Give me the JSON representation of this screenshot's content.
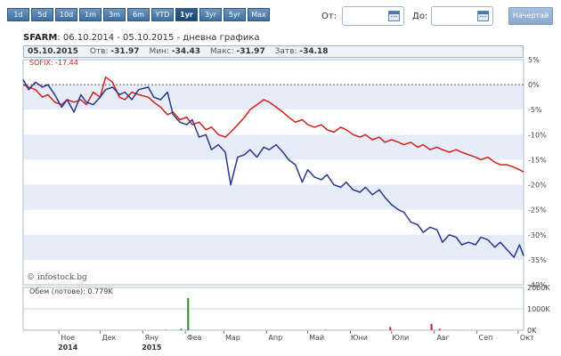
{
  "toolbar": {
    "ranges": [
      "1d",
      "5d",
      "10d",
      "1m",
      "3m",
      "6m",
      "YTD",
      "1yr",
      "3yr",
      "5yr",
      "Max"
    ],
    "active_range": "1yr",
    "from_label": "От:",
    "from_value": "",
    "to_label": "До:",
    "to_value": "",
    "draw_label": "Начертай"
  },
  "header": {
    "symbol": "SFARM",
    "period": ": 06.10.2014 - 05.10.2015 - дневна графика"
  },
  "stats": {
    "date": "05.10.2015",
    "open_label": "Отв:",
    "open": "-31.97",
    "min_label": "Мин:",
    "min": "-34.43",
    "max_label": "Макс:",
    "max": "-31.97",
    "close_label": "Затв:",
    "close": "-34.18"
  },
  "legend": {
    "sofix": "SOFIX: -17.44"
  },
  "credit": "© infostock.bg",
  "volume": {
    "label": "Обем (лотове): 0.779K"
  },
  "colors": {
    "sfarm": "#27378a",
    "sofix": "#d0201c",
    "volume_bar": "#2c8a2c",
    "volume_bar_red": "#c82020"
  },
  "chart_data": [
    {
      "type": "line",
      "title": "",
      "ylabel": "",
      "ylim": [
        -40,
        5
      ],
      "y_ticks": [
        "5%",
        "0%",
        "-5%",
        "-10%",
        "-15%",
        "-20%",
        "-25%",
        "-30%",
        "-35%",
        "-40%"
      ],
      "x_ticks": [
        "Ное",
        "Дек",
        "Яну",
        "Фев",
        "Мар",
        "Апр",
        "Май",
        "Юни",
        "Юли",
        "Авг",
        "Сеп",
        "Окт"
      ],
      "x_years": [
        "2014",
        "2015"
      ],
      "series": [
        {
          "name": "SFARM",
          "x": [
            "2014-10-06",
            "2014-10-10",
            "2014-10-15",
            "2014-10-20",
            "2014-10-24",
            "2014-10-29",
            "2014-11-03",
            "2014-11-07",
            "2014-11-12",
            "2014-11-17",
            "2014-11-21",
            "2014-11-26",
            "2014-12-01",
            "2014-12-05",
            "2014-12-10",
            "2014-12-15",
            "2014-12-19",
            "2014-12-24",
            "2014-12-29",
            "2015-01-05",
            "2015-01-09",
            "2015-01-14",
            "2015-01-19",
            "2015-01-23",
            "2015-01-28",
            "2015-02-02",
            "2015-02-06",
            "2015-02-11",
            "2015-02-16",
            "2015-02-20",
            "2015-02-25",
            "2015-03-02",
            "2015-03-06",
            "2015-03-11",
            "2015-03-16",
            "2015-03-20",
            "2015-03-25",
            "2015-03-30",
            "2015-04-03",
            "2015-04-08",
            "2015-04-13",
            "2015-04-17",
            "2015-04-22",
            "2015-04-27",
            "2015-05-01",
            "2015-05-06",
            "2015-05-11",
            "2015-05-15",
            "2015-05-20",
            "2015-05-25",
            "2015-05-29",
            "2015-06-03",
            "2015-06-08",
            "2015-06-12",
            "2015-06-17",
            "2015-06-22",
            "2015-06-26",
            "2015-07-01",
            "2015-07-06",
            "2015-07-10",
            "2015-07-15",
            "2015-07-20",
            "2015-07-24",
            "2015-07-29",
            "2015-08-03",
            "2015-08-07",
            "2015-08-12",
            "2015-08-17",
            "2015-08-21",
            "2015-08-26",
            "2015-08-31",
            "2015-09-04",
            "2015-09-09",
            "2015-09-14",
            "2015-09-18",
            "2015-09-23",
            "2015-09-28",
            "2015-10-02",
            "2015-10-05"
          ],
          "values": [
            1.0,
            -1.0,
            0.5,
            -0.5,
            0.0,
            -2.0,
            -4.5,
            -3.0,
            -5.5,
            -2.0,
            -3.5,
            -4.0,
            -2.5,
            -1.0,
            -0.5,
            -2.0,
            -1.5,
            -3.0,
            -1.0,
            -0.5,
            -2.5,
            -3.0,
            -1.5,
            -6.0,
            -7.5,
            -8.0,
            -7.0,
            -10.5,
            -10.0,
            -13.0,
            -12.0,
            -13.5,
            -20.0,
            -14.5,
            -14.0,
            -13.0,
            -14.5,
            -12.5,
            -13.0,
            -12.0,
            -13.5,
            -15.0,
            -16.0,
            -19.5,
            -17.0,
            -18.5,
            -19.0,
            -18.0,
            -20.0,
            -20.5,
            -19.5,
            -21.0,
            -21.5,
            -20.5,
            -22.0,
            -21.0,
            -22.5,
            -24.0,
            -25.0,
            -25.5,
            -27.5,
            -28.0,
            -29.5,
            -28.5,
            -29.0,
            -31.5,
            -30.0,
            -30.5,
            -32.0,
            -31.5,
            -32.0,
            -30.5,
            -31.0,
            -32.5,
            -31.5,
            -33.0,
            -34.5,
            -32.0,
            -34.18
          ]
        },
        {
          "name": "SOFIX",
          "x": [
            "2014-10-06",
            "2014-10-10",
            "2014-10-15",
            "2014-10-20",
            "2014-10-24",
            "2014-10-29",
            "2014-11-03",
            "2014-11-07",
            "2014-11-12",
            "2014-11-17",
            "2014-11-21",
            "2014-11-26",
            "2014-12-01",
            "2014-12-05",
            "2014-12-10",
            "2014-12-15",
            "2014-12-19",
            "2014-12-24",
            "2014-12-29",
            "2015-01-05",
            "2015-01-09",
            "2015-01-14",
            "2015-01-19",
            "2015-01-23",
            "2015-01-28",
            "2015-02-02",
            "2015-02-06",
            "2015-02-11",
            "2015-02-16",
            "2015-02-20",
            "2015-02-25",
            "2015-03-02",
            "2015-03-06",
            "2015-03-11",
            "2015-03-16",
            "2015-03-20",
            "2015-03-25",
            "2015-03-30",
            "2015-04-03",
            "2015-04-08",
            "2015-04-13",
            "2015-04-17",
            "2015-04-22",
            "2015-04-27",
            "2015-05-01",
            "2015-05-06",
            "2015-05-11",
            "2015-05-15",
            "2015-05-20",
            "2015-05-25",
            "2015-05-29",
            "2015-06-03",
            "2015-06-08",
            "2015-06-12",
            "2015-06-17",
            "2015-06-22",
            "2015-06-26",
            "2015-07-01",
            "2015-07-06",
            "2015-07-10",
            "2015-07-15",
            "2015-07-20",
            "2015-07-24",
            "2015-07-29",
            "2015-08-03",
            "2015-08-07",
            "2015-08-12",
            "2015-08-17",
            "2015-08-21",
            "2015-08-26",
            "2015-08-31",
            "2015-09-04",
            "2015-09-09",
            "2015-09-14",
            "2015-09-18",
            "2015-09-23",
            "2015-09-28",
            "2015-10-02",
            "2015-10-05"
          ],
          "values": [
            0.0,
            -0.5,
            -1.0,
            -2.5,
            -2.0,
            -3.5,
            -4.0,
            -3.0,
            -3.5,
            -3.0,
            -4.0,
            -1.5,
            -2.5,
            1.5,
            0.5,
            -2.5,
            -3.0,
            -1.5,
            -2.0,
            -2.5,
            -3.5,
            -4.5,
            -6.0,
            -5.5,
            -7.0,
            -6.5,
            -8.0,
            -7.5,
            -9.0,
            -8.5,
            -10.0,
            -10.5,
            -9.5,
            -8.0,
            -6.5,
            -5.0,
            -4.0,
            -3.0,
            -3.5,
            -4.5,
            -5.5,
            -6.5,
            -7.5,
            -7.0,
            -8.0,
            -8.5,
            -8.0,
            -9.0,
            -9.5,
            -8.5,
            -9.0,
            -10.0,
            -10.5,
            -10.0,
            -11.0,
            -10.5,
            -11.5,
            -11.0,
            -11.5,
            -12.0,
            -11.5,
            -12.5,
            -12.0,
            -13.0,
            -12.5,
            -13.0,
            -13.5,
            -13.0,
            -13.5,
            -14.0,
            -14.5,
            -15.0,
            -14.5,
            -15.5,
            -16.0,
            -16.0,
            -16.5,
            -17.0,
            -17.44
          ]
        }
      ]
    },
    {
      "type": "bar",
      "title": "",
      "ylabel": "",
      "ylim": [
        0,
        2000
      ],
      "y_ticks": [
        "2000K",
        "1000K",
        "0K"
      ],
      "y_unit": "K",
      "series": [
        {
          "name": "Обем (лотове)",
          "x": [
            "2015-01-18",
            "2015-01-29",
            "2015-02-03",
            "2015-05-14",
            "2015-06-30",
            "2015-07-30",
            "2015-08-05"
          ],
          "values": [
            20,
            60,
            1500,
            20,
            150,
            300,
            60
          ],
          "color": [
            "green",
            "green",
            "green",
            "red",
            "red",
            "red",
            "red"
          ]
        }
      ]
    }
  ]
}
